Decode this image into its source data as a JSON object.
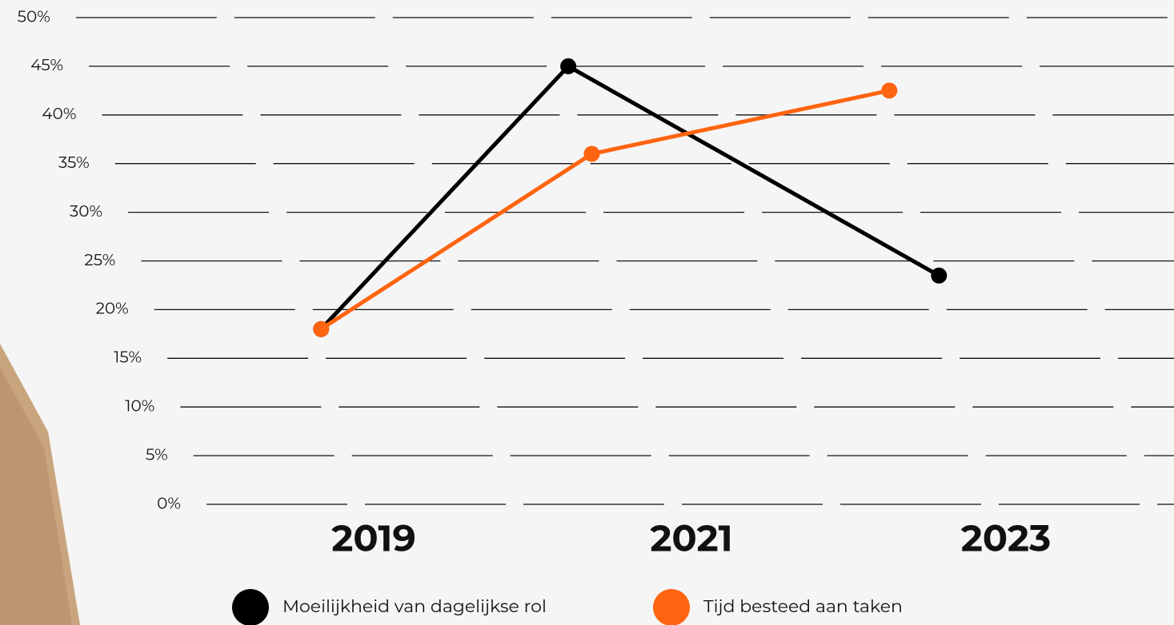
{
  "chart_data": {
    "type": "line",
    "categories": [
      "2019",
      "2021",
      "2023"
    ],
    "series": [
      {
        "name": "Moeilijkheid van dagelijkse rol",
        "color": "#000000",
        "values": [
          18,
          45,
          23.5
        ]
      },
      {
        "name": "Tijd besteed aan taken",
        "color": "#ff6410",
        "values": [
          18,
          36,
          42.5
        ]
      }
    ],
    "ylim": [
      0,
      50
    ],
    "yticks": [
      {
        "value": 0,
        "label": "0%"
      },
      {
        "value": 5,
        "label": "5%"
      },
      {
        "value": 10,
        "label": "10%"
      },
      {
        "value": 15,
        "label": "15%"
      },
      {
        "value": 20,
        "label": "20%"
      },
      {
        "value": 25,
        "label": "25%"
      },
      {
        "value": 30,
        "label": "30%"
      },
      {
        "value": 35,
        "label": "35%"
      },
      {
        "value": 40,
        "label": "40%"
      },
      {
        "value": 45,
        "label": "45%"
      },
      {
        "value": 50,
        "label": "50%"
      }
    ],
    "grid": true,
    "legend": "bottom"
  }
}
